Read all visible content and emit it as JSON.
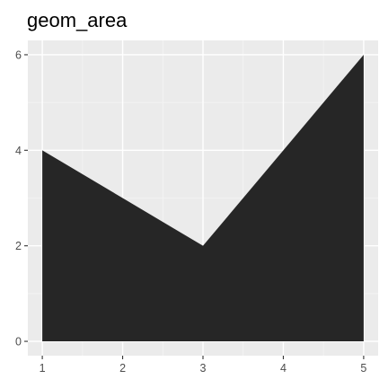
{
  "chart_data": {
    "type": "area",
    "title": "geom_area",
    "xlabel": "",
    "ylabel": "",
    "x": [
      1,
      2,
      3,
      4,
      5
    ],
    "series": [
      {
        "values": [
          4,
          3,
          2,
          4,
          6
        ]
      }
    ],
    "xlim": [
      1,
      5
    ],
    "ylim": [
      0,
      6
    ],
    "x_ticks": [
      1,
      2,
      3,
      4,
      5
    ],
    "x_tick_labels": [
      "1",
      "2",
      "3",
      "4",
      "5"
    ],
    "y_ticks": [
      0,
      2,
      4,
      6
    ],
    "y_tick_labels": [
      "0",
      "2",
      "4",
      "6"
    ],
    "grid": true,
    "legend": "none",
    "colors": {
      "fill": "#262626",
      "panel_background": "#ebebeb",
      "grid_major": "#ffffff",
      "grid_minor": "#f5f5f5",
      "tick": "#333333",
      "tick_label": "#4d4d4d"
    }
  }
}
